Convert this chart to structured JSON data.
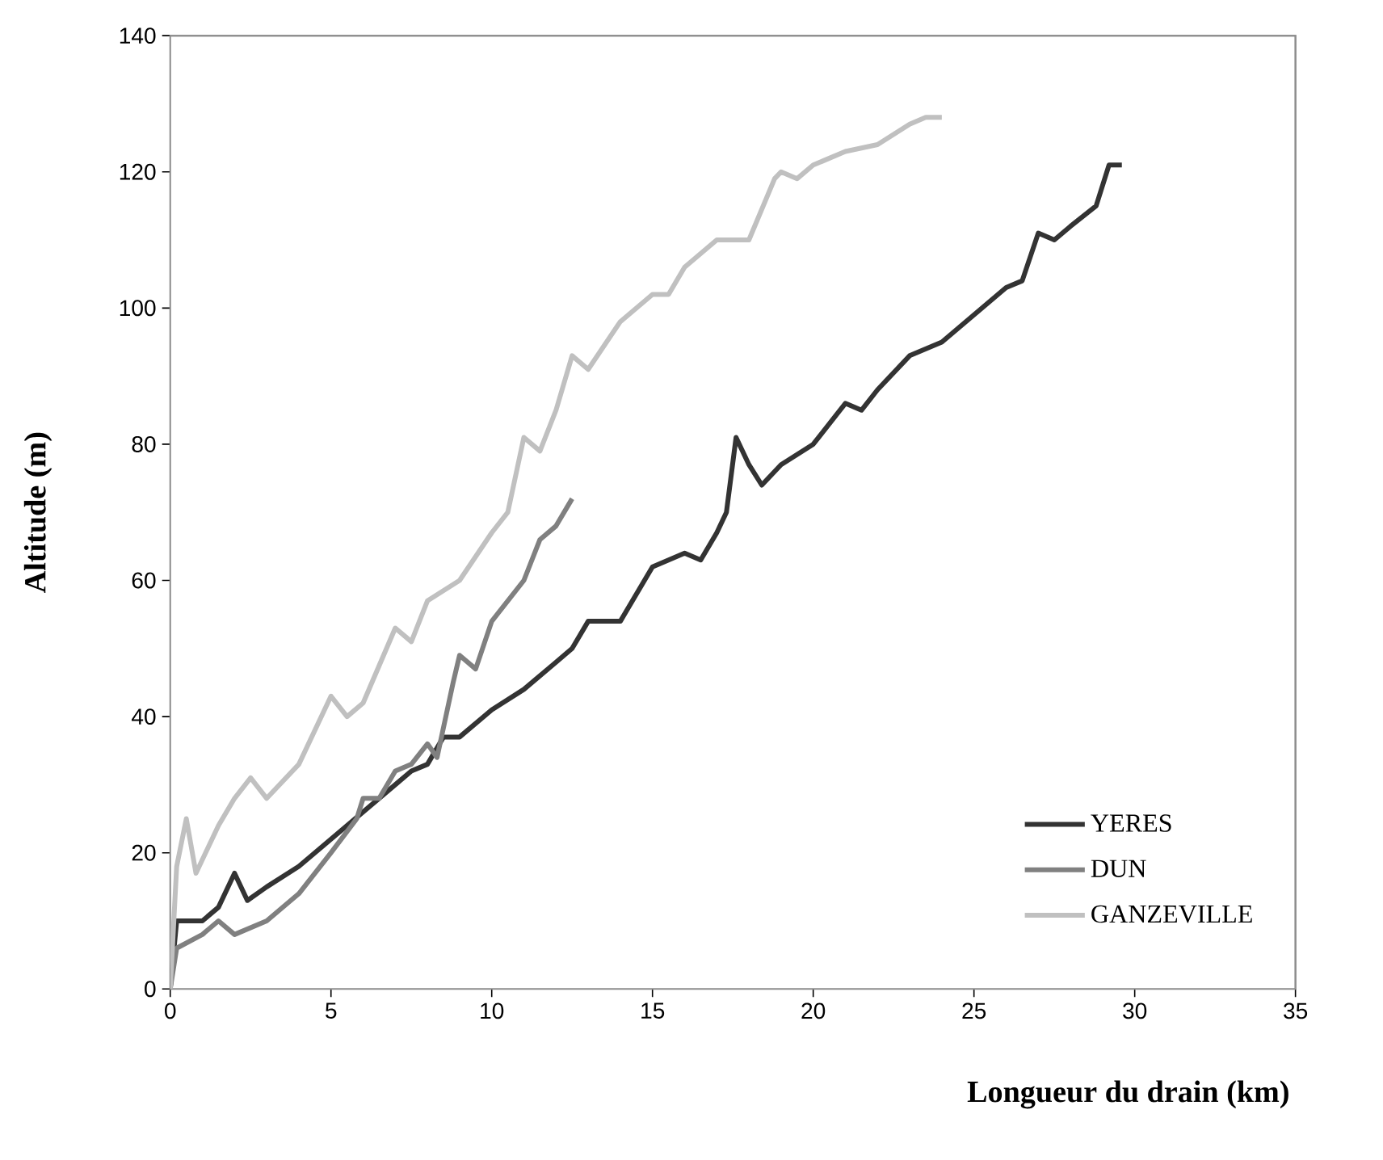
{
  "chart_data": {
    "type": "line",
    "xlabel": "Longueur du drain (km)",
    "ylabel": "Altitude (m)",
    "xlim": [
      0,
      35
    ],
    "xticks": [
      0,
      5,
      10,
      15,
      20,
      25,
      30,
      35
    ],
    "ylim": [
      0,
      140
    ],
    "yticks": [
      0,
      20,
      40,
      60,
      80,
      100,
      120,
      140
    ],
    "legend": "bottom right",
    "grid": false,
    "marker": "none",
    "line_style": "solid",
    "series": [
      {
        "name": "YERES",
        "color": "#333333",
        "x": [
          0,
          0.2,
          1,
          1.5,
          2,
          2.4,
          3,
          4,
          5,
          6,
          7,
          7.5,
          8,
          8.5,
          9,
          10,
          11,
          12,
          12.5,
          13,
          14,
          15,
          16,
          16.5,
          17,
          17.3,
          17.6,
          18,
          18.4,
          19,
          20,
          21,
          21.5,
          22,
          23,
          24,
          25,
          26,
          26.5,
          27,
          27.5,
          28,
          28.8,
          29.2,
          29.6
        ],
        "values": [
          0,
          10,
          10,
          12,
          17,
          13,
          15,
          18,
          22,
          26,
          30,
          32,
          33,
          37,
          37,
          41,
          44,
          48,
          50,
          54,
          54,
          62,
          64,
          63,
          67,
          70,
          81,
          77,
          74,
          77,
          80,
          86,
          85,
          88,
          93,
          95,
          99,
          103,
          104,
          111,
          110,
          112,
          115,
          121,
          121
        ]
      },
      {
        "name": "DUN",
        "color": "#808080",
        "x": [
          0,
          0.2,
          1,
          1.5,
          2,
          3,
          4,
          5,
          5.8,
          6,
          6.5,
          7,
          7.5,
          8,
          8.3,
          8.8,
          9,
          9.5,
          10,
          11,
          11.5,
          12,
          12.5
        ],
        "values": [
          0,
          6,
          8,
          10,
          8,
          10,
          14,
          20,
          25,
          28,
          28,
          32,
          33,
          36,
          34,
          45,
          49,
          47,
          54,
          60,
          66,
          68,
          72
        ]
      },
      {
        "name": "GANZEVILLE",
        "color": "#c0c0c0",
        "x": [
          0,
          0.2,
          0.5,
          0.8,
          1.5,
          2,
          2.5,
          3,
          4,
          5,
          5.5,
          6,
          7,
          7.5,
          8,
          9,
          10,
          10.5,
          11,
          11.5,
          12,
          12.5,
          13,
          14,
          15,
          15.5,
          16,
          17,
          18,
          18.8,
          19,
          19.5,
          20,
          21,
          22,
          23,
          23.5,
          24
        ],
        "values": [
          0,
          18,
          25,
          17,
          24,
          28,
          31,
          28,
          33,
          43,
          40,
          42,
          53,
          51,
          57,
          60,
          67,
          70,
          81,
          79,
          85,
          93,
          91,
          98,
          102,
          102,
          106,
          110,
          110,
          119,
          120,
          119,
          121,
          123,
          124,
          127,
          128,
          128
        ]
      }
    ]
  }
}
